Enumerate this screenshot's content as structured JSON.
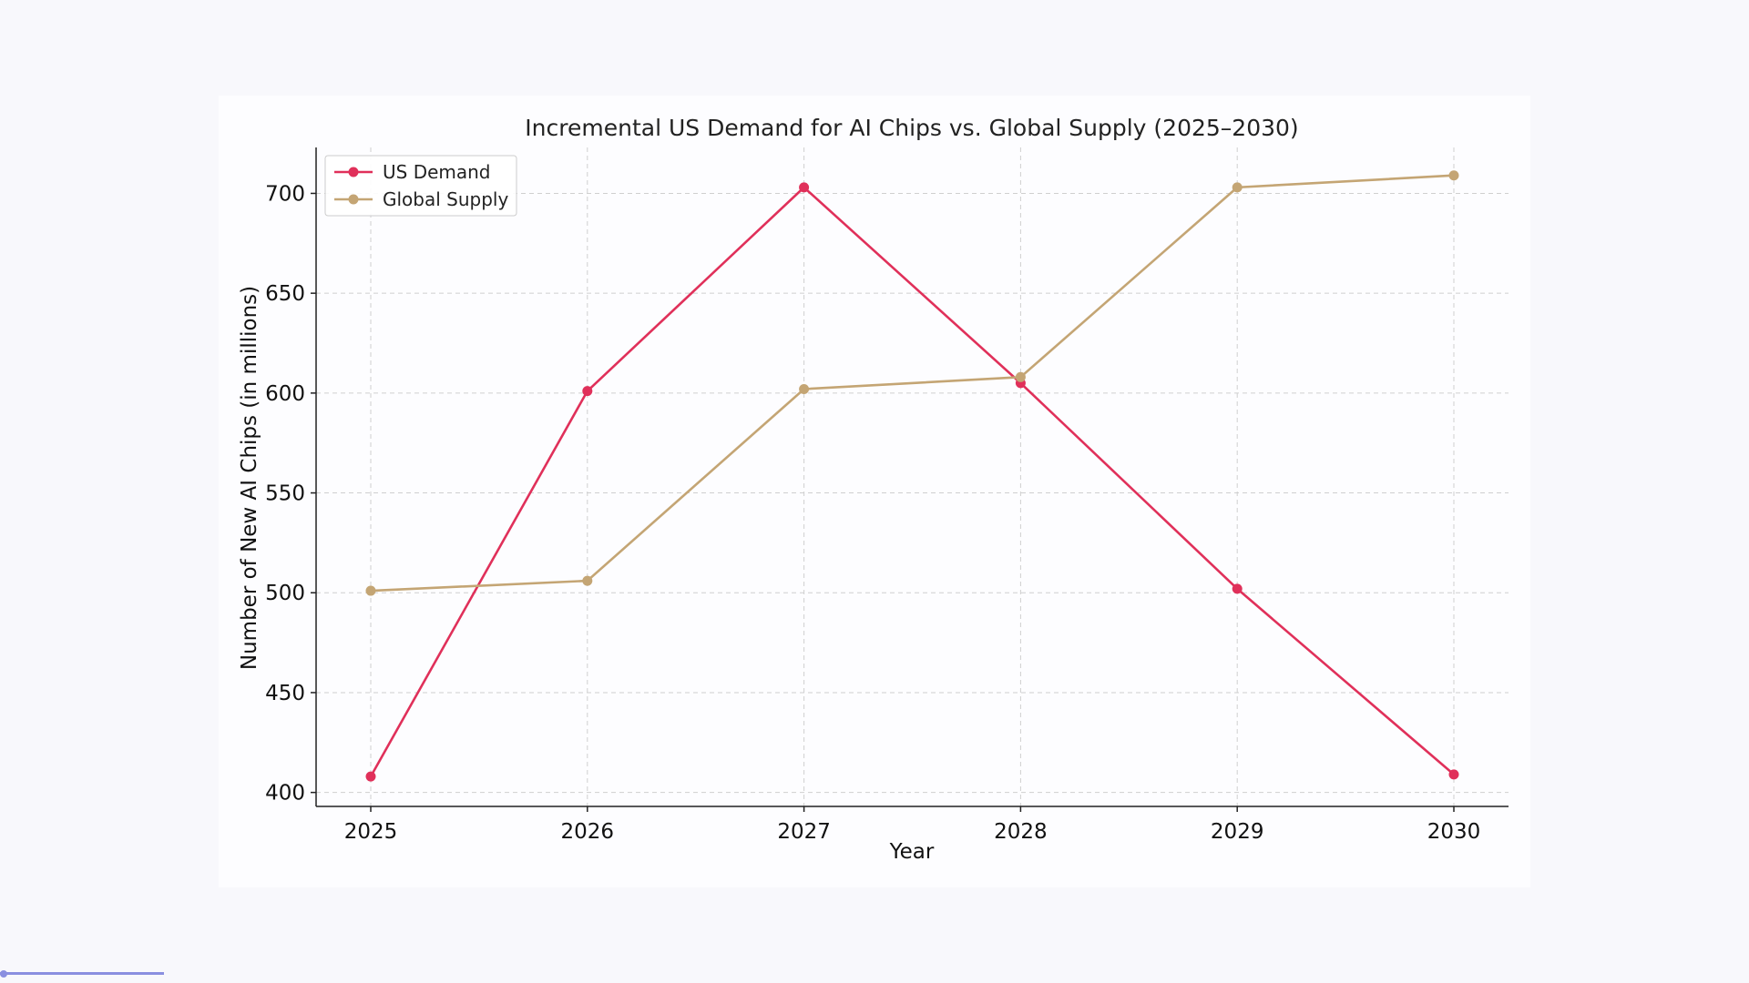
{
  "chart_data": {
    "type": "line",
    "title": "Incremental US Demand for AI Chips vs. Global Supply (2025–2030)",
    "xlabel": "Year",
    "ylabel": "Number of New AI Chips (in millions)",
    "x": [
      "2025",
      "2026",
      "2027",
      "2028",
      "2029",
      "2030"
    ],
    "yticks": [
      "400",
      "450",
      "500",
      "550",
      "600",
      "650",
      "700"
    ],
    "ylim": [
      393,
      723
    ],
    "grid": true,
    "legend_position": "top-left",
    "series": [
      {
        "name": "US Demand",
        "color": "#e0305a",
        "marker": "circle",
        "values": [
          408,
          601,
          703,
          605,
          502,
          409
        ]
      },
      {
        "name": "Global Supply",
        "color": "#c4a574",
        "marker": "circle",
        "values": [
          501,
          506,
          602,
          608,
          703,
          709
        ]
      }
    ]
  }
}
